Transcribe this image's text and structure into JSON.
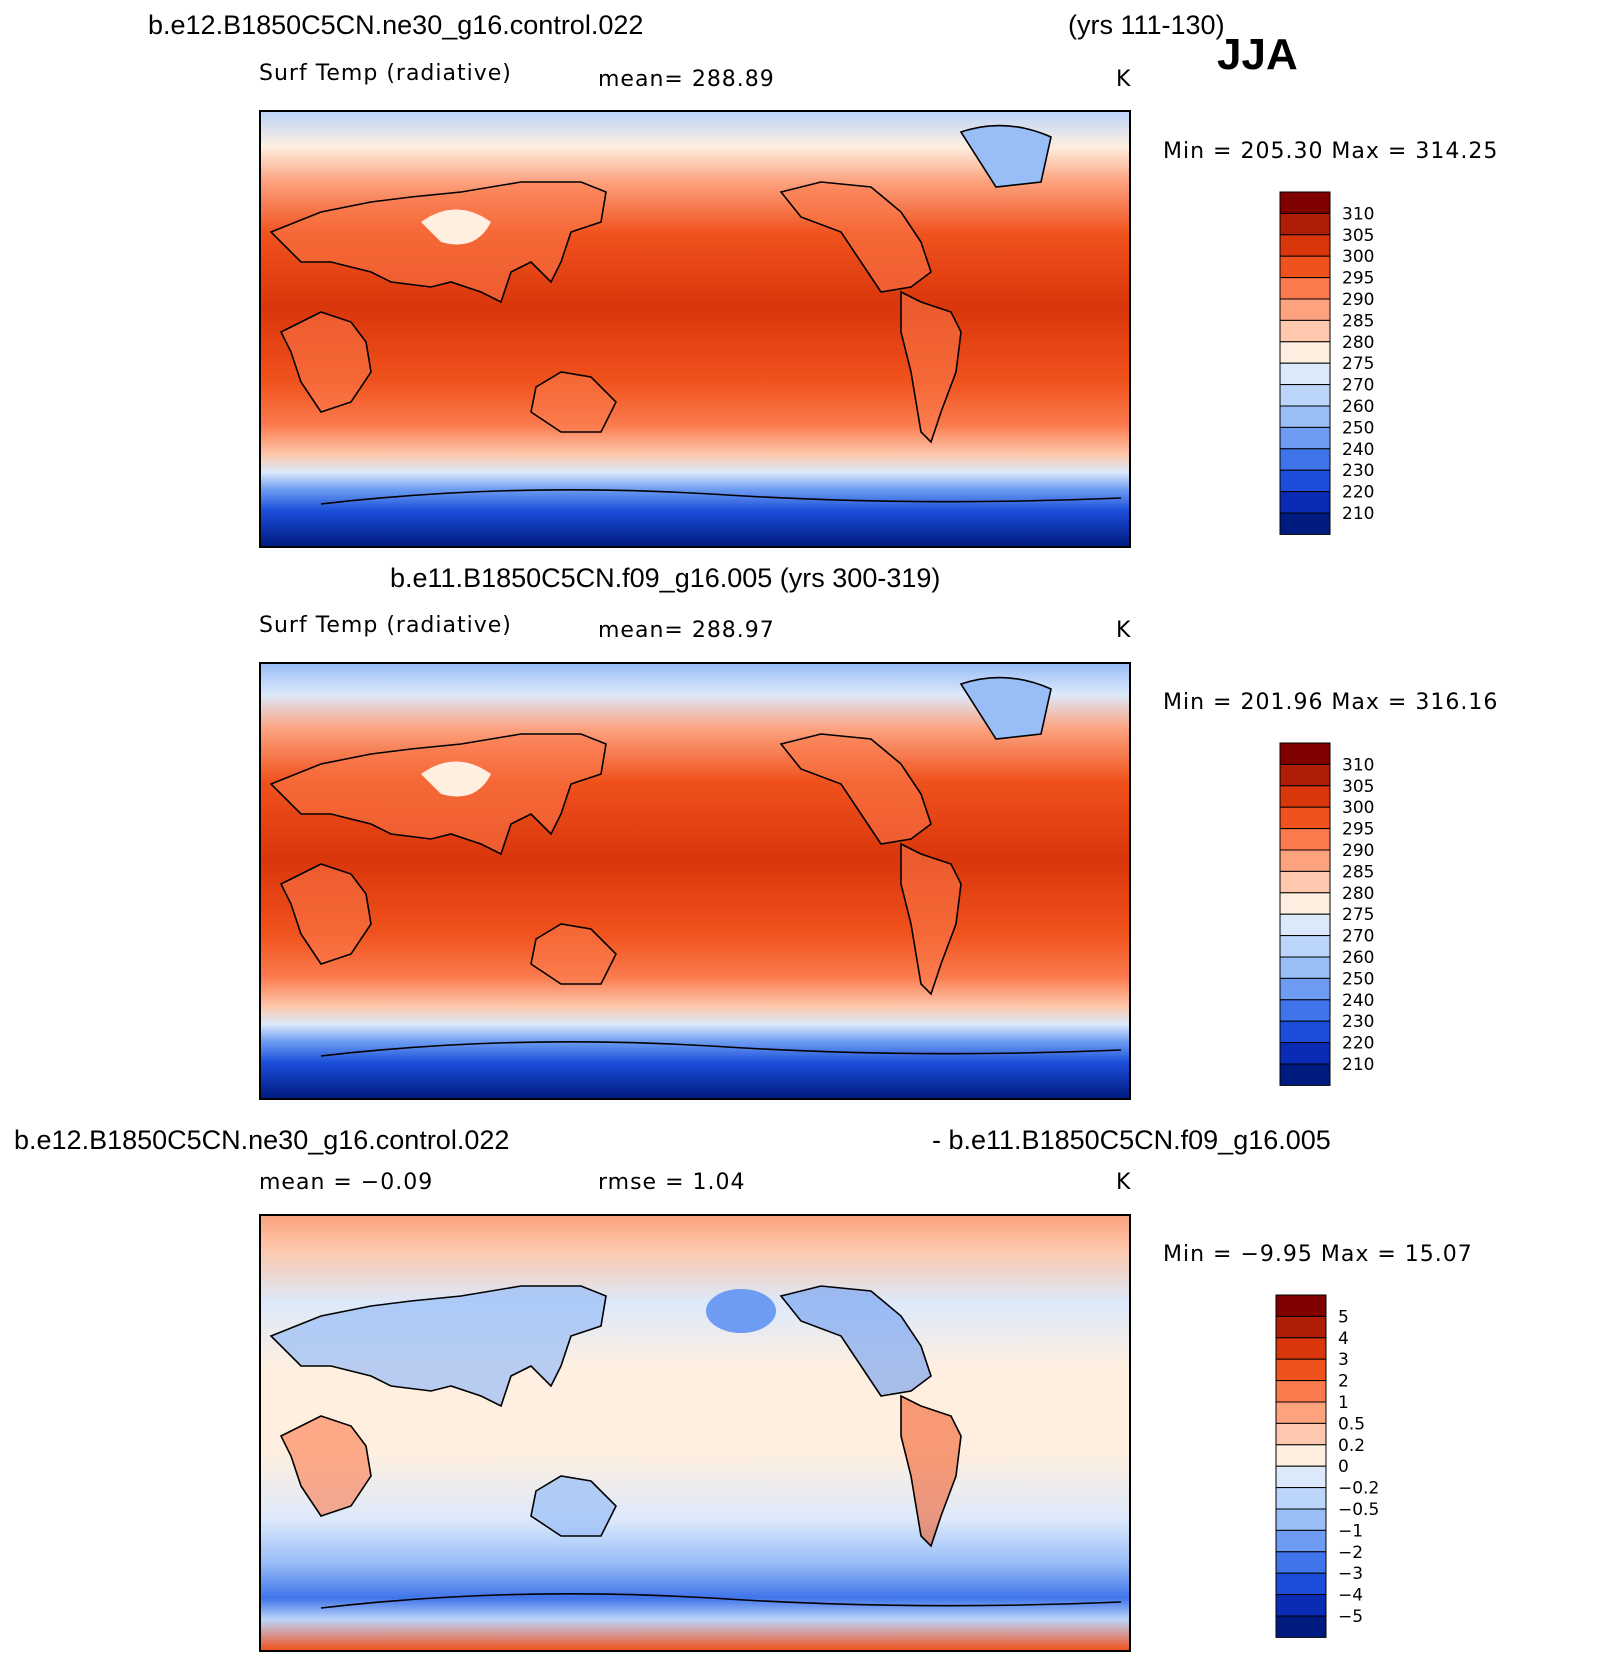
{
  "season": "JJA",
  "panels": [
    {
      "id": "top",
      "title_left": "b.e12.B1850C5CN.ne30_g16.control.022",
      "title_right": "(yrs 111-130)",
      "variable": "Surf Temp (radiative)",
      "stat": "mean=  288.89",
      "units": "K",
      "minmax": "Min  =  205.30  Max  =  314.25",
      "colorbar": {
        "labels": [
          "310",
          "305",
          "300",
          "295",
          "290",
          "285",
          "280",
          "275",
          "270",
          "260",
          "250",
          "240",
          "230",
          "220",
          "210"
        ],
        "colors": [
          "#800000",
          "#b01d06",
          "#d9360b",
          "#f0521d",
          "#fb7a4d",
          "#fca27f",
          "#fdc8ad",
          "#feefe0",
          "#dce9fb",
          "#bcd5fa",
          "#98bdf7",
          "#6d9cf2",
          "#3f74ea",
          "#1a4dd9",
          "#0a2cb5",
          "#001b80"
        ]
      }
    },
    {
      "id": "middle",
      "title_left": "b.e11.B1850C5CN.f09_g16.005 (yrs 300-319)",
      "variable": "Surf Temp (radiative)",
      "stat": "mean=  288.97",
      "units": "K",
      "minmax": "Min  =  201.96  Max  =  316.16",
      "colorbar": {
        "labels": [
          "310",
          "305",
          "300",
          "295",
          "290",
          "285",
          "280",
          "275",
          "270",
          "260",
          "250",
          "240",
          "230",
          "220",
          "210"
        ],
        "colors": [
          "#800000",
          "#b01d06",
          "#d9360b",
          "#f0521d",
          "#fb7a4d",
          "#fca27f",
          "#fdc8ad",
          "#feefe0",
          "#dce9fb",
          "#bcd5fa",
          "#98bdf7",
          "#6d9cf2",
          "#3f74ea",
          "#1a4dd9",
          "#0a2cb5",
          "#001b80"
        ]
      }
    },
    {
      "id": "diff",
      "title_left": "b.e12.B1850C5CN.ne30_g16.control.022",
      "title_right": "- b.e11.B1850C5CN.f09_g16.005",
      "stat_left": "mean  =    −0.09",
      "stat": "rmse  =     1.04",
      "units": "K",
      "minmax": "Min  =    −9.95  Max  =    15.07",
      "colorbar": {
        "labels": [
          "5",
          "4",
          "3",
          "2",
          "1",
          "0.5",
          "0.2",
          "0",
          "−0.2",
          "−0.5",
          "−1",
          "−2",
          "−3",
          "−4",
          "−5"
        ],
        "colors": [
          "#800000",
          "#b01d06",
          "#d9360b",
          "#f0521d",
          "#fb7a4d",
          "#fca27f",
          "#fdc8ad",
          "#feefe0",
          "#dce9fb",
          "#bcd5fa",
          "#98bdf7",
          "#6d9cf2",
          "#3f74ea",
          "#1a4dd9",
          "#0a2cb5",
          "#001b80"
        ]
      }
    }
  ]
}
